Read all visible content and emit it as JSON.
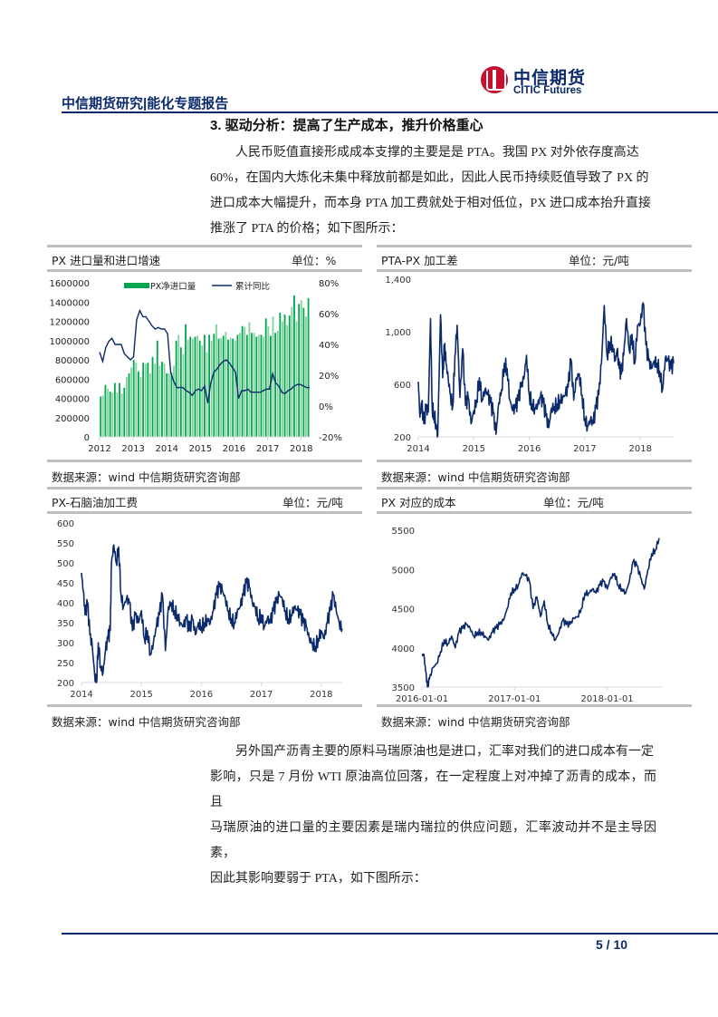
{
  "header": {
    "logo_cn": "中信期货",
    "logo_en": "CITIC Futures",
    "report_title": "中信期货研究|能化专题报告",
    "brand_color": "#0b2a6b",
    "logo_red": "#c8102e"
  },
  "section": {
    "title": "3. 驱动分析：提高了生产成本，推升价格重心"
  },
  "paragraphs": [
    {
      "lines": [
        "人民币贬值直接形成成本支撑的主要是是 PTA。我国 PX 对外依存度高达",
        "60%，在国内大炼化未集中释放前都是如此，因此人民币持续贬值导致了 PX 的",
        "进口成本大幅提升，而本身 PTA 加工费就处于相对低位，PX 进口成本抬升直接",
        "推涨了 PTA 的价格；如下图所示："
      ]
    },
    {
      "lines": [
        "另外国产沥青主要的原料马瑞原油也是进口，汇率对我们的进口成本有一定",
        "影响，只是 7 月份 WTI 原油高位回落，在一定程度上对冲掉了沥青的成本，而且",
        "马瑞原油的进口量的主要因素是瑞内瑞拉的供应问题，汇率波动并不是主导因素，",
        "因此其影响要弱于 PTA，如下图所示："
      ]
    }
  ],
  "charts": [
    {
      "title": "PX 进口量和进口增速",
      "unit": "单位：%",
      "source": "数据来源：wind  中信期货研究咨询部"
    },
    {
      "title": "PTA-PX 加工差",
      "unit": "单位：元/吨",
      "source": "数据来源：wind  中信期货研究咨询部"
    },
    {
      "title": "PX-石脑油加工费",
      "unit": "单位：元/吨",
      "source": "数据来源：wind  中信期货研究咨询部"
    },
    {
      "title": "PX 对应的成本",
      "unit": "单位：元/吨",
      "source": "数据来源：wind  中信期货研究咨询部"
    }
  ],
  "footer": {
    "page": "5 / 10"
  },
  "chart_data": [
    {
      "type": "bar",
      "title": "PX 进口量和进口增速",
      "unit": "单位：%",
      "legend": [
        "PX净进口量",
        "累计同比"
      ],
      "legend_position": "top",
      "x_ticks": [
        "2012",
        "2013",
        "2014",
        "2015",
        "2016",
        "2017",
        "2018"
      ],
      "y_left_ticks": [
        "0",
        "200000",
        "400000",
        "600000",
        "800000",
        "1000000",
        "1200000",
        "1400000",
        "1600000"
      ],
      "y_left_range": [
        0,
        1600000
      ],
      "y_right_ticks": [
        "-20%",
        "0%",
        "20%",
        "40%",
        "60%",
        "80%"
      ],
      "y_right_range": [
        -20,
        80
      ],
      "bar_colors": [
        "#00a650",
        "#7fd39a"
      ],
      "line_color": "#0b2a6b",
      "series": [
        {
          "name": "PX净进口量",
          "type": "bar",
          "values": [
            420000,
            430000,
            540000,
            500000,
            470000,
            460000,
            560000,
            460000,
            560000,
            450000,
            510000,
            620000,
            660000,
            720000,
            800000,
            770000,
            680000,
            620000,
            770000,
            760000,
            770000,
            660000,
            830000,
            760000,
            1000000,
            740000,
            780000,
            760000,
            660000,
            660000,
            670000,
            740000,
            1000000,
            1060000,
            930000,
            860000,
            1170000,
            1010000,
            1040000,
            1020000,
            1040000,
            1050000,
            1000000,
            950000,
            1060000,
            880000,
            1060000,
            1000000,
            1070000,
            1170000,
            1020000,
            1030000,
            1050000,
            1090000,
            1010000,
            1030000,
            1020000,
            1000000,
            1060000,
            1080000,
            1150000,
            1140000,
            1060000,
            1190000,
            1080000,
            1080000,
            1040000,
            1060000,
            1060000,
            1040000,
            1230000,
            1150000,
            1050000,
            1250000,
            1080000,
            1100000,
            1290000,
            1200000,
            1270000,
            1160000,
            1260000,
            1350000,
            1470000,
            1200000,
            1380000,
            1420000,
            1340000,
            1250000,
            1440000
          ]
        },
        {
          "name": "累计同比",
          "type": "line",
          "values": [
            35,
            29,
            38,
            42,
            44,
            40,
            40,
            40,
            34,
            32,
            30,
            32,
            56,
            62,
            58,
            58,
            55,
            52,
            50,
            51,
            50,
            50,
            47,
            22,
            16,
            12,
            12,
            12,
            10,
            9,
            7,
            10,
            11,
            10,
            13,
            2,
            15,
            22,
            24,
            27,
            29,
            30,
            28,
            25,
            22,
            5,
            10,
            10,
            11,
            9,
            9,
            9,
            9,
            10,
            11,
            11,
            21,
            15,
            13,
            9,
            8,
            10,
            11,
            13,
            14,
            14,
            13,
            12,
            12
          ]
        }
      ]
    },
    {
      "type": "line",
      "title": "PTA-PX 加工差",
      "unit": "单位：元/吨",
      "x_ticks": [
        "2014",
        "2015",
        "2016",
        "2017",
        "2018"
      ],
      "y_ticks": [
        "200",
        "600",
        "1,000",
        "1,400"
      ],
      "y_range": [
        200,
        1400
      ],
      "x_range": [
        2014.0,
        2018.6
      ],
      "line_color": "#0b2a6b",
      "series": [
        {
          "name": "PTA-PX 加工差",
          "x": [
            2014.0,
            2014.03,
            2014.06,
            2014.1,
            2014.14,
            2014.18,
            2014.22,
            2014.25,
            2014.28,
            2014.32,
            2014.35,
            2014.4,
            2014.44,
            2014.47,
            2014.5,
            2014.54,
            2014.58,
            2014.62,
            2014.66,
            2014.7,
            2014.75,
            2014.8,
            2014.85,
            2014.9,
            2014.95,
            2015.0,
            2015.05,
            2015.1,
            2015.15,
            2015.2,
            2015.25,
            2015.3,
            2015.35,
            2015.4,
            2015.45,
            2015.5,
            2015.55,
            2015.6,
            2015.65,
            2015.7,
            2015.75,
            2015.8,
            2015.85,
            2015.9,
            2015.95,
            2016.0,
            2016.05,
            2016.1,
            2016.15,
            2016.2,
            2016.25,
            2016.3,
            2016.35,
            2016.4,
            2016.45,
            2016.5,
            2016.55,
            2016.6,
            2016.65,
            2016.7,
            2016.75,
            2016.8,
            2016.85,
            2016.9,
            2016.95,
            2017.0,
            2017.05,
            2017.1,
            2017.15,
            2017.2,
            2017.25,
            2017.3,
            2017.35,
            2017.4,
            2017.45,
            2017.5,
            2017.55,
            2017.58,
            2017.62,
            2017.66,
            2017.7,
            2017.75,
            2017.8,
            2017.85,
            2017.9,
            2017.95,
            2018.0,
            2018.05,
            2018.1,
            2018.15,
            2018.2,
            2018.25,
            2018.3,
            2018.35,
            2018.4,
            2018.45,
            2018.5,
            2018.55,
            2018.6
          ],
          "values": [
            620,
            350,
            460,
            300,
            420,
            390,
            1100,
            420,
            380,
            300,
            210,
            1130,
            650,
            900,
            760,
            640,
            520,
            430,
            820,
            1050,
            500,
            870,
            440,
            500,
            300,
            400,
            480,
            650,
            480,
            560,
            520,
            460,
            380,
            220,
            460,
            560,
            760,
            720,
            480,
            400,
            420,
            480,
            580,
            640,
            820,
            520,
            450,
            420,
            440,
            500,
            460,
            360,
            270,
            420,
            430,
            450,
            480,
            500,
            520,
            580,
            790,
            480,
            650,
            680,
            520,
            340,
            280,
            330,
            300,
            420,
            520,
            760,
            1200,
            820,
            920,
            900,
            780,
            860,
            720,
            680,
            820,
            1100,
            860,
            980,
            760,
            1050,
            1060,
            1220,
            900,
            780,
            720,
            780,
            760,
            700,
            560,
            800,
            780,
            720,
            760
          ]
        }
      ]
    },
    {
      "type": "line",
      "title": "PX-石脑油加工费",
      "unit": "单位：元/吨",
      "x_ticks": [
        "2014",
        "2015",
        "2016",
        "2017",
        "2018"
      ],
      "y_ticks": [
        "200",
        "250",
        "300",
        "350",
        "400",
        "450",
        "500",
        "550",
        "600"
      ],
      "y_range": [
        200,
        600
      ],
      "x_range": [
        2014.0,
        2018.35
      ],
      "line_color": "#0b2a6b",
      "series": [
        {
          "name": "PX-石脑油加工费",
          "x": [
            2014.0,
            2014.03,
            2014.06,
            2014.1,
            2014.14,
            2014.18,
            2014.22,
            2014.25,
            2014.28,
            2014.32,
            2014.36,
            2014.4,
            2014.44,
            2014.48,
            2014.5,
            2014.54,
            2014.58,
            2014.62,
            2014.66,
            2014.7,
            2014.75,
            2014.8,
            2014.85,
            2014.9,
            2014.95,
            2015.0,
            2015.05,
            2015.1,
            2015.15,
            2015.2,
            2015.25,
            2015.3,
            2015.35,
            2015.4,
            2015.45,
            2015.5,
            2015.55,
            2015.6,
            2015.65,
            2015.7,
            2015.75,
            2015.8,
            2015.85,
            2015.9,
            2015.95,
            2016.0,
            2016.05,
            2016.1,
            2016.15,
            2016.2,
            2016.25,
            2016.3,
            2016.35,
            2016.4,
            2016.45,
            2016.5,
            2016.55,
            2016.6,
            2016.65,
            2016.7,
            2016.75,
            2016.8,
            2016.85,
            2016.9,
            2016.95,
            2017.0,
            2017.05,
            2017.1,
            2017.15,
            2017.2,
            2017.25,
            2017.3,
            2017.35,
            2017.4,
            2017.45,
            2017.5,
            2017.55,
            2017.6,
            2017.65,
            2017.7,
            2017.75,
            2017.8,
            2017.85,
            2017.9,
            2017.95,
            2018.0,
            2018.05,
            2018.1,
            2018.15,
            2018.2,
            2018.25,
            2018.3,
            2018.35
          ],
          "values": [
            475,
            430,
            370,
            400,
            320,
            290,
            220,
            200,
            300,
            240,
            225,
            280,
            310,
            330,
            500,
            545,
            500,
            540,
            420,
            390,
            410,
            400,
            330,
            370,
            350,
            380,
            310,
            330,
            270,
            300,
            340,
            370,
            420,
            280,
            390,
            400,
            380,
            370,
            350,
            340,
            360,
            330,
            360,
            320,
            350,
            340,
            350,
            360,
            350,
            380,
            420,
            440,
            430,
            410,
            380,
            360,
            350,
            380,
            390,
            420,
            450,
            440,
            400,
            390,
            360,
            370,
            340,
            360,
            350,
            380,
            400,
            420,
            410,
            380,
            360,
            370,
            390,
            380,
            370,
            350,
            340,
            310,
            300,
            290,
            310,
            330,
            310,
            350,
            380,
            420,
            380,
            350,
            335
          ]
        }
      ]
    },
    {
      "type": "line",
      "title": "PX 对应的成本",
      "unit": "单位：元/吨",
      "x_ticks": [
        "2016-01-01",
        "2017-01-01",
        "2018-01-01"
      ],
      "y_ticks": [
        "3500",
        "4000",
        "4500",
        "5000",
        "5500"
      ],
      "y_range": [
        3500,
        5500
      ],
      "x_range": [
        2016.0,
        2018.6
      ],
      "line_color": "#0b2a6b",
      "series": [
        {
          "name": "PX 对应的成本",
          "x": [
            2016.0,
            2016.02,
            2016.04,
            2016.06,
            2016.08,
            2016.12,
            2016.16,
            2016.2,
            2016.24,
            2016.28,
            2016.32,
            2016.36,
            2016.4,
            2016.44,
            2016.48,
            2016.52,
            2016.56,
            2016.6,
            2016.64,
            2016.68,
            2016.72,
            2016.76,
            2016.8,
            2016.84,
            2016.88,
            2016.92,
            2016.96,
            2017.0,
            2017.04,
            2017.08,
            2017.12,
            2017.16,
            2017.2,
            2017.24,
            2017.28,
            2017.32,
            2017.36,
            2017.4,
            2017.44,
            2017.48,
            2017.52,
            2017.56,
            2017.6,
            2017.64,
            2017.68,
            2017.72,
            2017.76,
            2017.8,
            2017.84,
            2017.88,
            2017.92,
            2017.96,
            2018.0,
            2018.04,
            2018.08,
            2018.12,
            2018.16,
            2018.2,
            2018.24,
            2018.28,
            2018.32,
            2018.36,
            2018.4,
            2018.44,
            2018.48,
            2018.52,
            2018.56
          ],
          "values": [
            3900,
            3920,
            3700,
            3500,
            3600,
            3750,
            3800,
            3950,
            4100,
            4050,
            4150,
            4000,
            4200,
            4250,
            4300,
            4250,
            4150,
            4200,
            4200,
            4150,
            4100,
            4200,
            4250,
            4300,
            4350,
            4500,
            4700,
            4750,
            4800,
            4950,
            4920,
            4850,
            4500,
            4650,
            4400,
            4600,
            4300,
            4200,
            4100,
            4200,
            4350,
            4300,
            4300,
            4380,
            4400,
            4500,
            4700,
            4700,
            4750,
            4700,
            4800,
            4850,
            4750,
            4900,
            4950,
            4800,
            4750,
            4700,
            4850,
            5100,
            5050,
            4900,
            4750,
            5000,
            5200,
            5250,
            5400
          ]
        }
      ]
    }
  ]
}
